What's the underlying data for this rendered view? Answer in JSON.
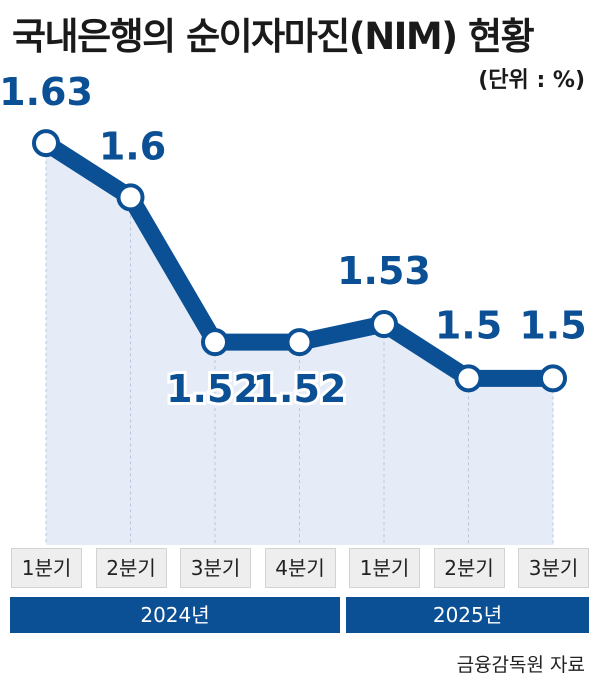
{
  "title": "국내은행의 순이자마진(NIM) 현황",
  "unit": "(단위 : %)",
  "source": "금융감독원 자료",
  "colors": {
    "line": "#0b4f95",
    "fill": "#e6ecf7",
    "year_bar": "#0b4f95",
    "quarter_cell": "#eeeeee"
  },
  "years": [
    "2024년",
    "2025년"
  ],
  "chart_data": {
    "type": "line",
    "title": "국내은행의 순이자마진(NIM) 현황",
    "unit": "%",
    "categories": [
      "1분기",
      "2분기",
      "3분기",
      "4분기",
      "1분기",
      "2분기",
      "3분기"
    ],
    "year_groups": [
      {
        "label": "2024년",
        "quarters": [
          "1분기",
          "2분기",
          "3분기",
          "4분기"
        ]
      },
      {
        "label": "2025년",
        "quarters": [
          "1분기",
          "2분기",
          "3분기"
        ]
      }
    ],
    "series": [
      {
        "values": [
          1.63,
          1.6,
          1.52,
          1.52,
          1.53,
          1.5,
          1.5
        ]
      }
    ],
    "data_labels": [
      "1.63",
      "1.6",
      "1.52",
      "1.52",
      "1.53",
      "1.5",
      "1.5"
    ],
    "ylim": [
      1.43,
      1.64
    ],
    "grid": false,
    "legend": "none"
  }
}
